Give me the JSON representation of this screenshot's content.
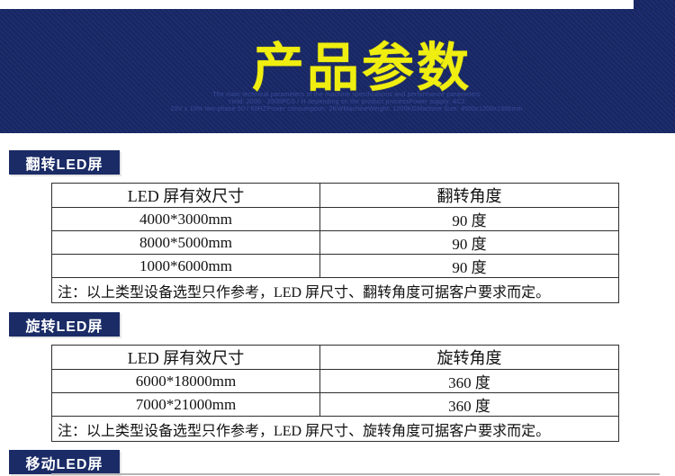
{
  "banner": {
    "title": "产品参数",
    "subtitle_lines": [
      "The main technical parameters of the machine specifications and performance parameters",
      "Yield: 2000 - 2500PCS / H depending on the product processPower supply: AC2",
      "20V ± 10% two-phase 50 / 60HZPower consumption: 2KWMachineWeight: 1200KGMachine Size: 4500x1200x1300mm"
    ],
    "colors": {
      "banner_bg": "#1c2c6b",
      "title": "#f0ee10",
      "subtitle": "#3a4b99"
    }
  },
  "sections": [
    {
      "label": "翻转LED屏",
      "table": {
        "headers": [
          "LED 屏有效尺寸",
          "翻转角度"
        ],
        "rows": [
          [
            "4000*3000mm",
            "90 度"
          ],
          [
            "8000*5000mm",
            "90 度"
          ],
          [
            "1000*6000mm",
            "90 度"
          ]
        ],
        "note": "注：以上类型设备选型只作参考，LED 屏尺寸、翻转角度可据客户要求而定。"
      }
    },
    {
      "label": "旋转LED屏",
      "table": {
        "headers": [
          "LED 屏有效尺寸",
          "旋转角度"
        ],
        "rows": [
          [
            "6000*18000mm",
            "360 度"
          ],
          [
            "7000*21000mm",
            "360 度"
          ]
        ],
        "note": "注：以上类型设备选型只作参考，LED 屏尺寸、旋转角度可据客户要求而定。"
      }
    },
    {
      "label": "移动LED屏"
    }
  ],
  "colors": {
    "section_label_bg": "#1a2b66",
    "section_label_text": "#ffffff",
    "table_border": "#2f2f2f"
  }
}
